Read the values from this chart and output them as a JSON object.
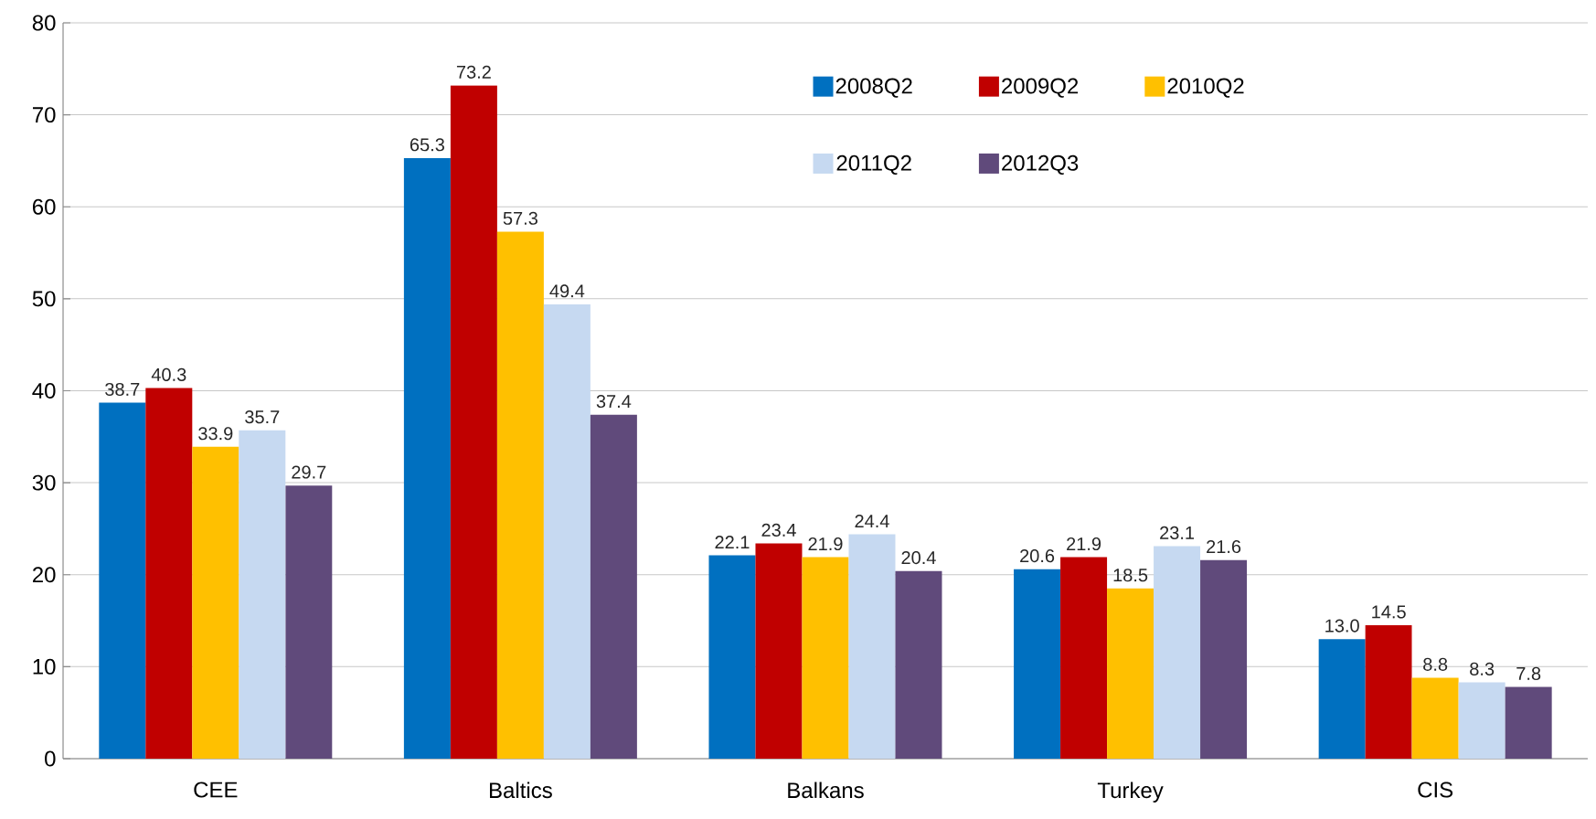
{
  "chart_data": {
    "type": "bar",
    "categories": [
      "CEE",
      "Baltics",
      "Balkans",
      "Turkey",
      "CIS"
    ],
    "series": [
      {
        "name": "2008Q2",
        "color": "#0070c0",
        "values": [
          38.7,
          65.3,
          22.1,
          20.6,
          13.0
        ],
        "value_labels": [
          "38.7",
          "65.3",
          "22.1",
          "20.6",
          "13.0"
        ]
      },
      {
        "name": "2009Q2",
        "color": "#c00000",
        "values": [
          40.3,
          73.2,
          23.4,
          21.9,
          14.5
        ],
        "value_labels": [
          "40.3",
          "73.2",
          "23.4",
          "21.9",
          "14.5"
        ]
      },
      {
        "name": "2010Q2",
        "color": "#ffc000",
        "values": [
          33.9,
          57.3,
          21.9,
          18.5,
          8.8
        ],
        "value_labels": [
          "33.9",
          "57.3",
          "21.9",
          "18.5",
          "8.8"
        ]
      },
      {
        "name": "2011Q2",
        "color": "#c6d9f1",
        "values": [
          35.7,
          49.4,
          24.4,
          23.1,
          8.3
        ],
        "value_labels": [
          "35.7",
          "49.4",
          "24.4",
          "23.1",
          "8.3"
        ]
      },
      {
        "name": "2012Q3",
        "color": "#604a7b",
        "values": [
          29.7,
          37.4,
          20.4,
          21.6,
          7.8
        ],
        "value_labels": [
          "29.7",
          "37.4",
          "20.4",
          "21.6",
          "7.8"
        ]
      }
    ],
    "ylim": [
      0,
      80
    ],
    "yticks": [
      0,
      10,
      20,
      30,
      40,
      50,
      60,
      70,
      80
    ],
    "grid": "y",
    "legend": "top right"
  }
}
